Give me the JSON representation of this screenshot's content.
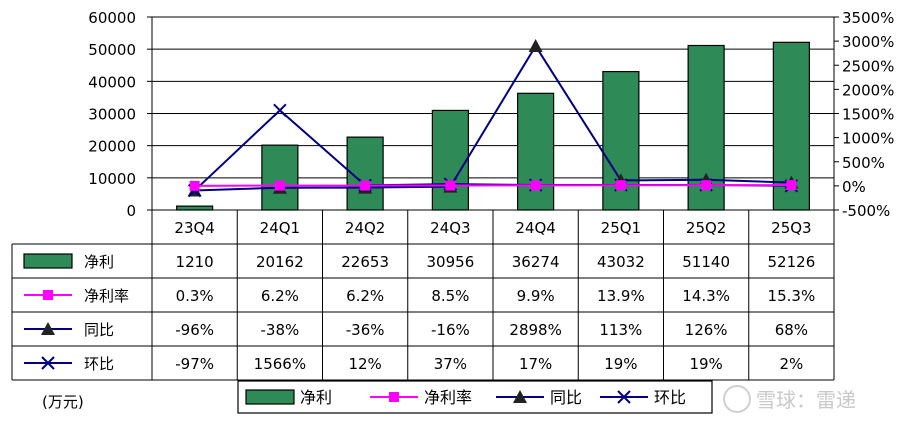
{
  "chart_data": {
    "type": "bar",
    "categories": [
      "23Q4",
      "24Q1",
      "24Q2",
      "24Q3",
      "24Q4",
      "25Q1",
      "25Q2",
      "25Q3"
    ],
    "ylim": [
      0,
      60000
    ],
    "y_ticks": [
      "0",
      "10000",
      "20000",
      "30000",
      "40000",
      "50000",
      "60000"
    ],
    "y2lim": [
      -500,
      3500
    ],
    "y2_ticks": [
      "-500%",
      "0%",
      "500%",
      "1000%",
      "1500%",
      "2000%",
      "2500%",
      "3000%",
      "3500%"
    ],
    "series": [
      {
        "name": "净利",
        "kind": "bar",
        "axis": "left",
        "color": "#2e8b57",
        "values": [
          1210,
          20162,
          22653,
          30956,
          36274,
          43032,
          51140,
          52126
        ],
        "labels": [
          "1210",
          "20162",
          "22653",
          "30956",
          "36274",
          "43032",
          "51140",
          "52126"
        ]
      },
      {
        "name": "净利率",
        "kind": "line",
        "axis": "right",
        "color": "#ff00ff",
        "marker": "square",
        "values": [
          0.3,
          6.2,
          6.2,
          8.5,
          9.9,
          13.9,
          14.3,
          15.3
        ],
        "labels": [
          "0.3%",
          "6.2%",
          "6.2%",
          "8.5%",
          "9.9%",
          "13.9%",
          "14.3%",
          "15.3%"
        ]
      },
      {
        "name": "同比",
        "kind": "line",
        "axis": "right",
        "color": "#000080",
        "marker": "triangle",
        "values": [
          -96,
          -38,
          -36,
          -16,
          2898,
          113,
          126,
          68
        ],
        "labels": [
          "-96%",
          "-38%",
          "-36%",
          "-16%",
          "2898%",
          "113%",
          "126%",
          "68%"
        ]
      },
      {
        "name": "环比",
        "kind": "line",
        "axis": "right",
        "color": "#000080",
        "marker": "x",
        "values": [
          -97,
          1566,
          12,
          37,
          17,
          19,
          19,
          2
        ],
        "labels": [
          "-97%",
          "1566%",
          "12%",
          "37%",
          "17%",
          "19%",
          "19%",
          "2%"
        ]
      }
    ],
    "grid": true,
    "legend": "bottom",
    "unit_label": "(万元)"
  },
  "watermark": "雪球：雷递"
}
